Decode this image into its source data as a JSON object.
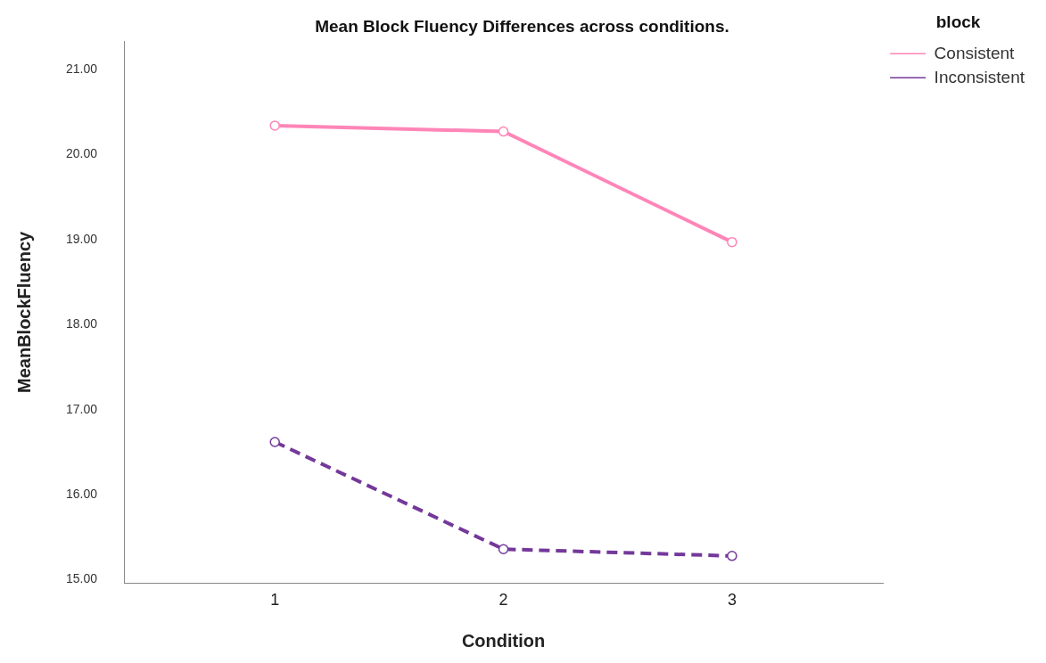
{
  "chart_data": {
    "type": "line",
    "title": "Mean Block Fluency Differences across conditions.",
    "xlabel": "Condition",
    "ylabel": "MeanBlockFluency",
    "legend_title": "block",
    "x": [
      1,
      2,
      3
    ],
    "xlim": [
      0.34,
      3.66
    ],
    "xticks": [
      1,
      2,
      3
    ],
    "ylim": [
      14.96,
      21.33
    ],
    "yticks": [
      {
        "value": 15,
        "label": "15.00"
      },
      {
        "value": 16,
        "label": "16.00"
      },
      {
        "value": 17,
        "label": "17.00"
      },
      {
        "value": 18,
        "label": "18.00"
      },
      {
        "value": 19,
        "label": "19.00"
      },
      {
        "value": 20,
        "label": "20.00"
      },
      {
        "value": 21,
        "label": "21.00"
      }
    ],
    "series": [
      {
        "name": "Consistent",
        "color": "#ff85b8",
        "values": [
          20.34,
          20.27,
          18.97
        ],
        "line_style": "solid"
      },
      {
        "name": "Inconsistent",
        "color": "#74389a",
        "values": [
          16.62,
          15.36,
          15.28
        ],
        "line_style": "dashed"
      }
    ],
    "marker": "circle",
    "grid": false,
    "legend": "top right"
  }
}
